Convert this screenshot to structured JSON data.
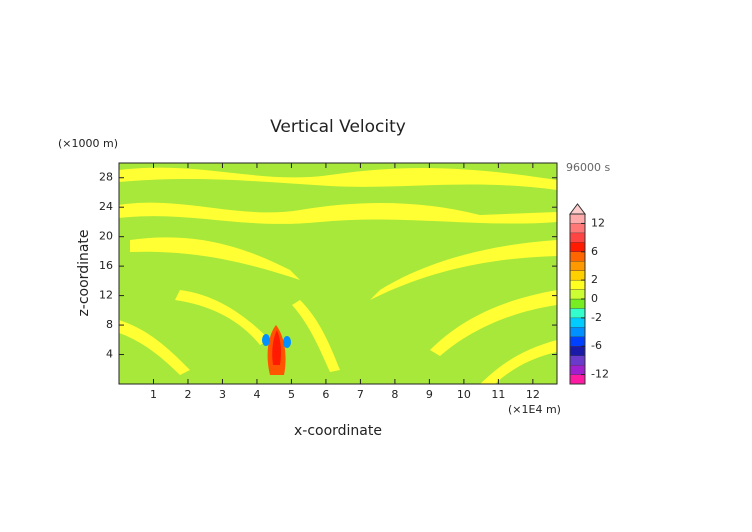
{
  "chart_data": {
    "type": "contour",
    "title": "Vertical Velocity",
    "x_label": "x-coordinate",
    "y_label": "z-coordinate",
    "x_unit": "(×1E4 m)",
    "y_unit": "(×1000 m)",
    "time_label": "96000 s",
    "xlim": [
      0,
      12.7
    ],
    "xticks": [
      1,
      2,
      3,
      4,
      5,
      6,
      7,
      8,
      9,
      10,
      11,
      12
    ],
    "ylim": [
      0,
      30
    ],
    "yticks": [
      4,
      8,
      12,
      16,
      20,
      24,
      28
    ],
    "colorbar": {
      "levels": [
        -14,
        -12,
        -10,
        -8,
        -6,
        -4,
        -3,
        -2,
        -1,
        0,
        1,
        2,
        3,
        4,
        6,
        8,
        10,
        12,
        14
      ],
      "colors": [
        "#ff1aa3",
        "#a020d0",
        "#6a3acc",
        "#1a1aa8",
        "#0040ff",
        "#0090ff",
        "#00ccff",
        "#33ffcc",
        "#77ee22",
        "#ccff33",
        "#ffff22",
        "#ffd000",
        "#ff9900",
        "#ff6600",
        "#ff1a00",
        "#ff4444",
        "#ff7777",
        "#ffaaaa"
      ],
      "extend_color": "#ffcccc",
      "ticks": [
        -12,
        -6,
        -2,
        0,
        2,
        6,
        12
      ]
    }
  }
}
